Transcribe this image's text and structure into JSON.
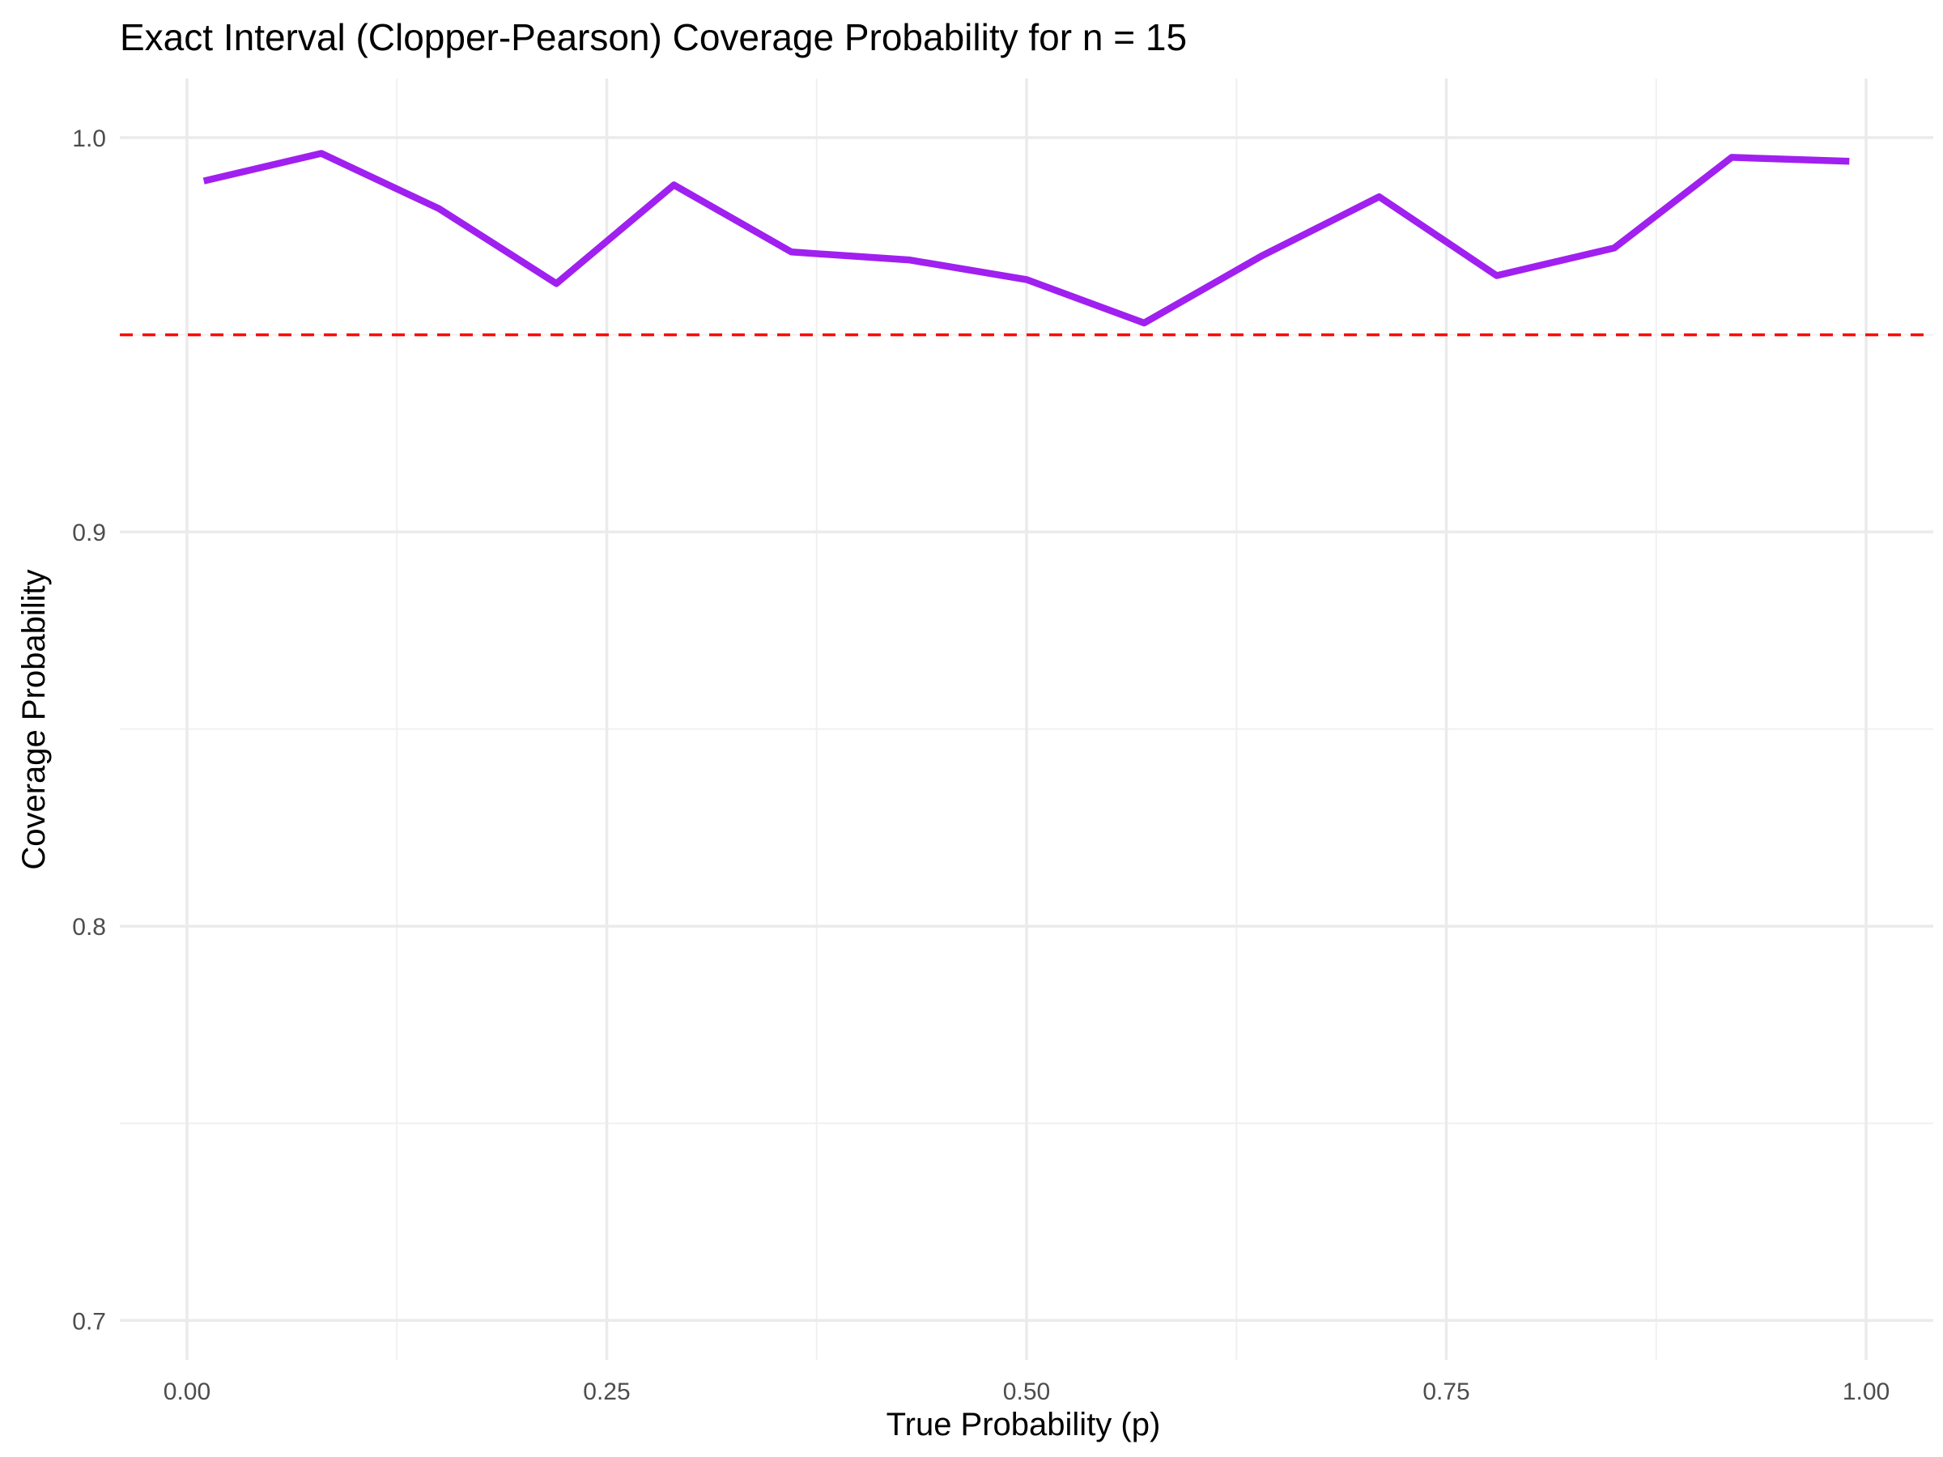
{
  "chart_data": {
    "type": "line",
    "title": "Exact Interval (Clopper-Pearson) Coverage Probability for n = 15",
    "xlabel": "True Probability (p)",
    "ylabel": "Coverage Probability",
    "xlim": [
      -0.04,
      1.04
    ],
    "ylim": [
      0.69,
      1.015
    ],
    "x_ticks": [
      0.0,
      0.25,
      0.5,
      0.75,
      1.0
    ],
    "x_tick_labels": [
      "0.00",
      "0.25",
      "0.50",
      "0.75",
      "1.00"
    ],
    "x_minor_ticks": [
      0.125,
      0.375,
      0.625,
      0.875
    ],
    "y_ticks": [
      0.7,
      0.8,
      0.9,
      1.0
    ],
    "y_tick_labels": [
      "0.7",
      "0.8",
      "0.9",
      "1.0"
    ],
    "y_minor_ticks": [
      0.75,
      0.85,
      0.95
    ],
    "grid": true,
    "series": [
      {
        "color": "#a020f0",
        "x": [
          0.01,
          0.08,
          0.15,
          0.22,
          0.29,
          0.36,
          0.43,
          0.5,
          0.57,
          0.64,
          0.71,
          0.78,
          0.85,
          0.92,
          0.99
        ],
        "values": [
          0.989,
          0.996,
          0.982,
          0.963,
          0.988,
          0.971,
          0.969,
          0.964,
          0.953,
          0.97,
          0.985,
          0.965,
          0.972,
          0.995,
          0.994
        ]
      }
    ],
    "reference_line": {
      "y": 0.95,
      "color": "#ff0000",
      "style": "dashed"
    }
  }
}
